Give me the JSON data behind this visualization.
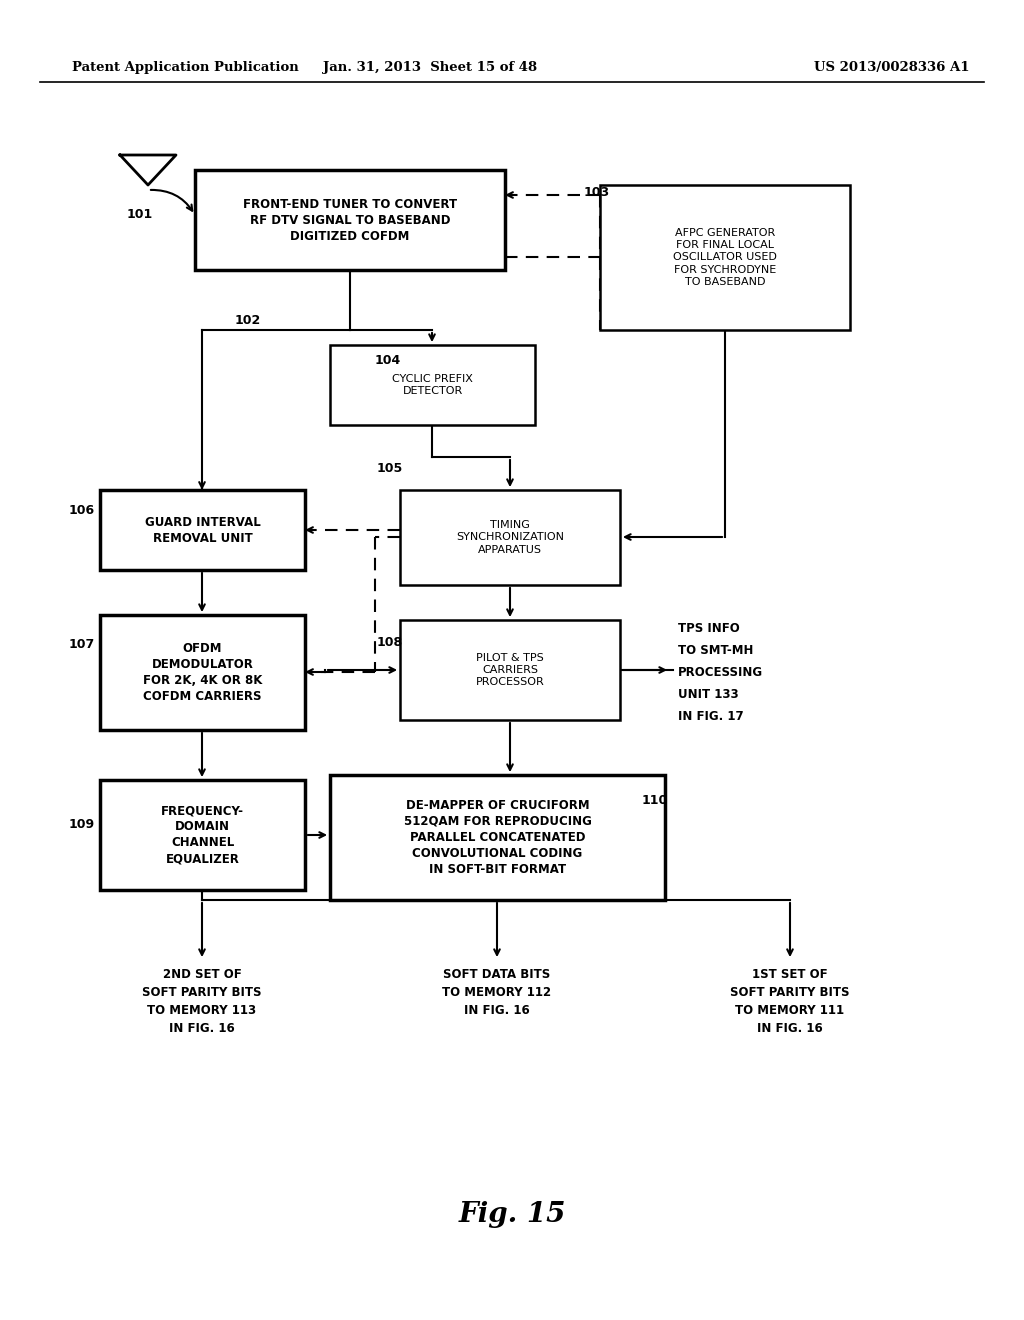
{
  "header_left": "Patent Application Publication",
  "header_center": "Jan. 31, 2013  Sheet 15 of 48",
  "header_right": "US 2013/0028336 A1",
  "fig_label": "Fig. 15",
  "bg_color": "#ffffff"
}
